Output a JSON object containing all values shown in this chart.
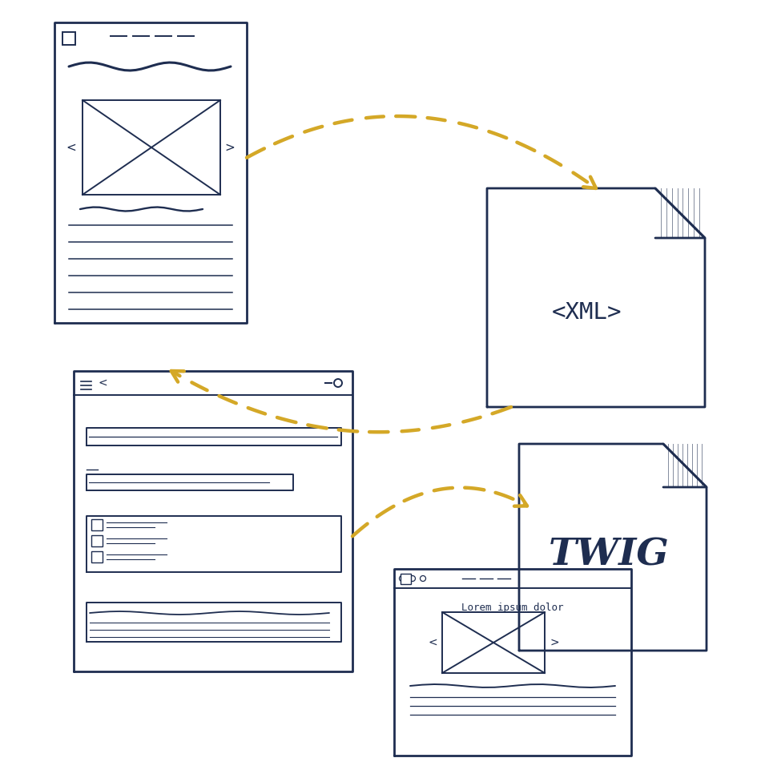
{
  "bg_color": "#ffffff",
  "dark": "#1e2d50",
  "gold": "#d4a827",
  "lw_main": 2.0,
  "lw_med": 1.4,
  "lw_thin": 1.0,
  "xml_text": "<XML>",
  "twig_text": "TWIG",
  "lorem_text": "Lorem ipsum dolor"
}
